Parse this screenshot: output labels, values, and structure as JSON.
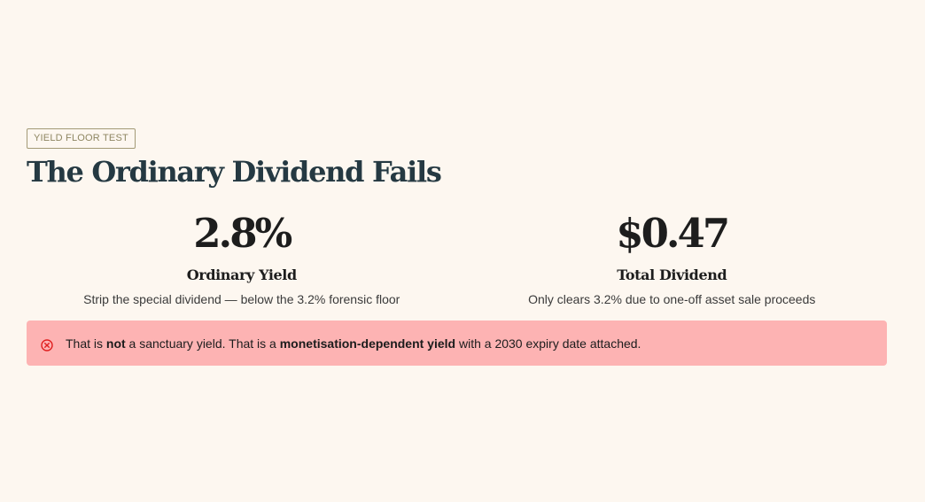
{
  "section": {
    "eyebrow": "YIELD FLOOR TEST",
    "title": "The Ordinary Dividend Fails"
  },
  "stats": [
    {
      "value": "2.8%",
      "label": "Ordinary Yield",
      "description": "Strip the special dividend — below the 3.2% forensic floor"
    },
    {
      "value": "$0.47",
      "label": "Total Dividend",
      "description": "Only clears 3.2% due to one-off asset sale proceeds"
    }
  ],
  "alert": {
    "icon": "error-circle-icon",
    "color": "#e02020",
    "part1": "That is ",
    "emphasis1": "not",
    "part2": " a sanctuary yield. That is a ",
    "emphasis2": "monetisation-dependent yield",
    "part3": " with a 2030 expiry date attached."
  }
}
